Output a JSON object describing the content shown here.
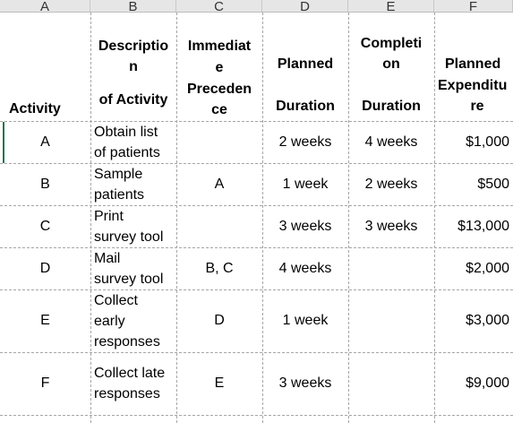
{
  "columns": [
    "A",
    "B",
    "C",
    "D",
    "E",
    "F"
  ],
  "header": {
    "activity": "Activity",
    "description": [
      "Descriptio",
      "n",
      "of Activity"
    ],
    "precedence": [
      "Immediat",
      "e",
      "Preceden",
      "ce"
    ],
    "planned_duration": [
      "Planned",
      "Duration"
    ],
    "completion_duration": [
      "Completi",
      "on",
      "Duration"
    ],
    "planned_expenditure": [
      "Planned",
      "Expenditu",
      "re"
    ]
  },
  "rows": [
    {
      "activity": "A",
      "description": [
        "Obtain list",
        "of patients"
      ],
      "precedence": "",
      "planned": "2 weeks",
      "completion": "4 weeks",
      "expenditure": "$1,000"
    },
    {
      "activity": "B",
      "description": [
        "Sample",
        "patients"
      ],
      "precedence": "A",
      "planned": "1 week",
      "completion": "2 weeks",
      "expenditure": "$500"
    },
    {
      "activity": "C",
      "description": [
        "Print",
        "survey tool"
      ],
      "precedence": "",
      "planned": "3 weeks",
      "completion": "3 weeks",
      "expenditure": "$13,000"
    },
    {
      "activity": "D",
      "description": [
        "Mail",
        "survey tool"
      ],
      "precedence": "B, C",
      "planned": "4 weeks",
      "completion": "",
      "expenditure": "$2,000"
    },
    {
      "activity": "E",
      "description": [
        "Collect",
        "early",
        "responses"
      ],
      "precedence": "D",
      "planned": "1 week",
      "completion": "",
      "expenditure": "$3,000"
    },
    {
      "activity": "F",
      "description": [
        "Collect late",
        "responses"
      ],
      "precedence": "E",
      "planned": "3 weeks",
      "completion": "",
      "expenditure": "$9,000"
    }
  ]
}
